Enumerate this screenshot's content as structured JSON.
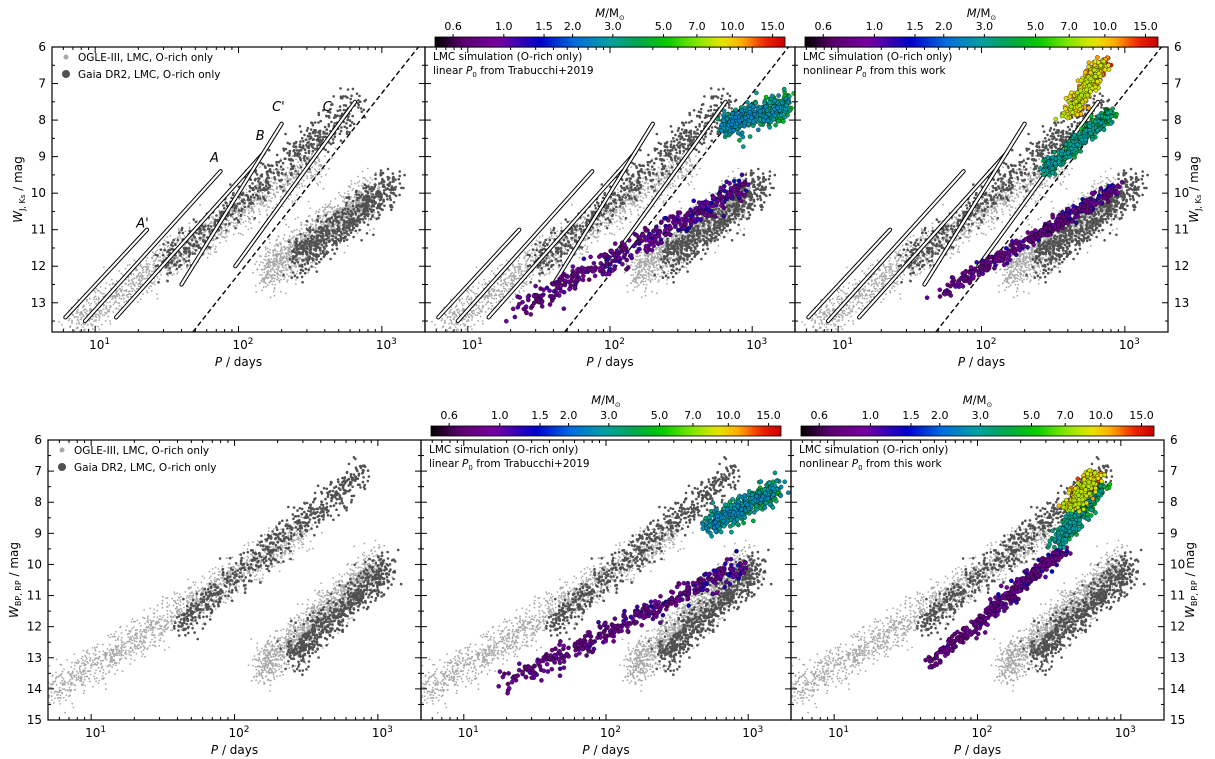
{
  "chart_data": [
    {
      "type": "scatter",
      "row": "top",
      "column": 1,
      "xlabel": "P / days",
      "ylabel": "W_{J,Ks} / mag",
      "xscale": "log",
      "xlim": [
        5,
        2000
      ],
      "ylim": [
        13.8,
        6
      ],
      "xticks": [
        "10^1",
        "10^2",
        "10^3"
      ],
      "yticks": [
        "6",
        "7",
        "8",
        "9",
        "10",
        "11",
        "12",
        "13"
      ],
      "legend": [
        "OGLE-III, LMC, O-rich only",
        "Gaia DR2, LMC, O-rich only"
      ],
      "legend_position": "top-left",
      "series": [
        {
          "name": "OGLE-III, LMC, O-rich only",
          "color": "#a8a8a8",
          "clouds": [
            {
              "x": [
                7,
                400
              ],
              "y": [
                13.6,
                9.0
              ],
              "spread": 0.55
            },
            {
              "x": [
                150,
                900
              ],
              "y": [
                12.2,
                10.0
              ],
              "spread": 0.6
            }
          ]
        },
        {
          "name": "Gaia DR2, LMC, O-rich only",
          "color": "#505050",
          "clouds": [
            {
              "x": [
                30,
                700
              ],
              "y": [
                12.0,
                7.5
              ],
              "spread": 0.5
            },
            {
              "x": [
                250,
                1200
              ],
              "y": [
                11.8,
                9.8
              ],
              "spread": 0.55
            }
          ]
        }
      ],
      "sequences": [
        {
          "label": "A'",
          "x": [
            6.2,
            23
          ],
          "y": [
            13.4,
            11.0
          ]
        },
        {
          "label": "A",
          "x": [
            8.5,
            75
          ],
          "y": [
            13.5,
            9.4
          ]
        },
        {
          "label": "B",
          "x": [
            14,
            150
          ],
          "y": [
            13.4,
            8.9
          ]
        },
        {
          "label": "C'",
          "x": [
            40,
            200
          ],
          "y": [
            12.5,
            8.1
          ]
        },
        {
          "label": "C",
          "x": [
            95,
            650
          ],
          "y": [
            12.0,
            7.5
          ]
        }
      ],
      "dashed_line": {
        "x": [
          48,
          1800
        ],
        "y": [
          13.8,
          6.0
        ]
      }
    },
    {
      "type": "scatter",
      "row": "top",
      "column": 2,
      "xlabel": "P / days",
      "xscale": "log",
      "xlim": [
        5,
        2000
      ],
      "ylim": [
        13.8,
        6
      ],
      "annotation": [
        "LMC simulation (O-rich only)",
        "linear P_0 from Trabucchi+2019"
      ],
      "colorbar": {
        "label": "M/M_⊙",
        "ticks": [
          "0.6",
          "1.0",
          "1.5",
          "2.0",
          "3.0",
          "5.0",
          "7.0",
          "10.0",
          "15.0"
        ]
      },
      "simulation": [
        {
          "x": [
            20,
            900
          ],
          "y": [
            13.3,
            9.8
          ],
          "mass": [
            0.6,
            1.6
          ],
          "spread": 0.4
        },
        {
          "x": [
            600,
            1800
          ],
          "y": [
            8.2,
            7.6
          ],
          "mass": [
            2.0,
            5.5
          ],
          "spread": 0.45
        }
      ],
      "dashed_line": {
        "x": [
          48,
          1800
        ],
        "y": [
          13.8,
          6.0
        ]
      }
    },
    {
      "type": "scatter",
      "row": "top",
      "column": 3,
      "xlabel": "P / days",
      "ylabel": "W_{J,Ks} / mag",
      "xscale": "log",
      "xlim": [
        5,
        2000
      ],
      "ylim": [
        13.8,
        6
      ],
      "annotation": [
        "LMC simulation (O-rich only)",
        "nonlinear P_0 from this work"
      ],
      "colorbar": {
        "label": "M/M_⊙",
        "ticks": [
          "0.6",
          "1.0",
          "1.5",
          "2.0",
          "3.0",
          "5.0",
          "7.0",
          "10.0",
          "15.0"
        ]
      },
      "simulation": [
        {
          "x": [
            45,
            900
          ],
          "y": [
            12.9,
            9.8
          ],
          "mass": [
            0.6,
            1.6
          ],
          "spread": 0.22
        },
        {
          "x": [
            280,
            800
          ],
          "y": [
            9.4,
            7.8
          ],
          "mass": [
            2.5,
            5.5
          ],
          "spread": 0.22
        },
        {
          "x": [
            400,
            700
          ],
          "y": [
            7.9,
            6.4
          ],
          "mass": [
            7.0,
            15.0
          ],
          "spread": 0.2
        }
      ],
      "dashed_line": {
        "x": [
          48,
          1800
        ],
        "y": [
          13.8,
          6.0
        ]
      }
    },
    {
      "type": "scatter",
      "row": "bottom",
      "column": 1,
      "xlabel": "P / days",
      "ylabel": "W_{BP,RP} / mag",
      "xscale": "log",
      "xlim": [
        5,
        2000
      ],
      "ylim": [
        15,
        6
      ],
      "xticks": [
        "10^1",
        "10^2",
        "10^3"
      ],
      "yticks": [
        "6",
        "7",
        "8",
        "9",
        "10",
        "11",
        "12",
        "13",
        "14",
        "15"
      ],
      "legend": [
        "OGLE-III, LMC, O-rich only",
        "Gaia DR2, LMC, O-rich only"
      ],
      "legend_position": "top-left",
      "series": [
        {
          "name": "OGLE-III, LMC, O-rich only",
          "color": "#a8a8a8",
          "clouds": [
            {
              "x": [
                5,
                300
              ],
              "y": [
                14.2,
                9.0
              ],
              "spread": 0.6
            },
            {
              "x": [
                150,
                1000
              ],
              "y": [
                13.4,
                10.0
              ],
              "spread": 0.65
            }
          ]
        },
        {
          "name": "Gaia DR2, LMC, O-rich only",
          "color": "#505050",
          "clouds": [
            {
              "x": [
                40,
                800
              ],
              "y": [
                12.0,
                7.0
              ],
              "spread": 0.55
            },
            {
              "x": [
                250,
                1200
              ],
              "y": [
                13.0,
                10.0
              ],
              "spread": 0.6
            }
          ]
        }
      ]
    },
    {
      "type": "scatter",
      "row": "bottom",
      "column": 2,
      "xlabel": "P / days",
      "xscale": "log",
      "xlim": [
        5,
        2000
      ],
      "ylim": [
        15,
        6
      ],
      "annotation": [
        "LMC simulation (O-rich only)",
        "linear P_0 from Trabucchi+2019"
      ],
      "colorbar": {
        "label": "M/M_⊙",
        "ticks": [
          "0.6",
          "1.0",
          "1.5",
          "2.0",
          "3.0",
          "5.0",
          "7.0",
          "10.0",
          "15.0"
        ]
      },
      "simulation": [
        {
          "x": [
            18,
            900
          ],
          "y": [
            13.9,
            10.0
          ],
          "mass": [
            0.6,
            1.6
          ],
          "spread": 0.45
        },
        {
          "x": [
            500,
            1600
          ],
          "y": [
            8.8,
            7.6
          ],
          "mass": [
            2.0,
            5.5
          ],
          "spread": 0.45
        }
      ]
    },
    {
      "type": "scatter",
      "row": "bottom",
      "column": 3,
      "xlabel": "P / days",
      "ylabel": "W_{BP,RP} / mag",
      "xscale": "log",
      "xlim": [
        5,
        2000
      ],
      "ylim": [
        15,
        6
      ],
      "annotation": [
        "LMC simulation (O-rich only)",
        "nonlinear P_0 from this work"
      ],
      "colorbar": {
        "label": "M/M_⊙",
        "ticks": [
          "0.6",
          "1.0",
          "1.5",
          "2.0",
          "3.0",
          "5.0",
          "7.0",
          "10.0",
          "15.0"
        ]
      },
      "simulation": [
        {
          "x": [
            45,
            400
          ],
          "y": [
            13.3,
            9.5
          ],
          "mass": [
            0.6,
            1.6
          ],
          "spread": 0.25
        },
        {
          "x": [
            350,
            700
          ],
          "y": [
            9.4,
            7.5
          ],
          "mass": [
            2.5,
            5.5
          ],
          "spread": 0.3
        },
        {
          "x": [
            450,
            650
          ],
          "y": [
            8.2,
            7.1
          ],
          "mass": [
            7.0,
            15.0
          ],
          "spread": 0.22
        }
      ]
    }
  ]
}
